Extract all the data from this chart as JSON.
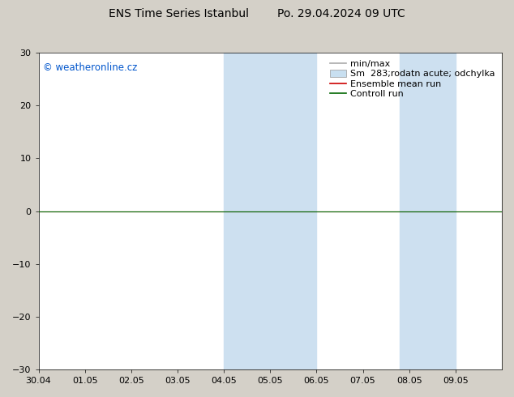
{
  "title": "ENS Time Series Istanbul        Po. 29.04.2024 09 UTC",
  "watermark": "© weatheronline.cz",
  "watermark_color": "#0055cc",
  "ylim": [
    -30,
    30
  ],
  "yticks": [
    -30,
    -20,
    -10,
    0,
    10,
    20,
    30
  ],
  "xlim_start": 0,
  "xlim_end": 10,
  "xtick_labels": [
    "30.04",
    "01.05",
    "02.05",
    "03.05",
    "04.05",
    "05.05",
    "06.05",
    "07.05",
    "08.05",
    "09.05"
  ],
  "xtick_positions": [
    0,
    1,
    2,
    3,
    4,
    5,
    6,
    7,
    8,
    9
  ],
  "bg_color": "#d4d0c8",
  "plot_bg_color": "#ffffff",
  "shaded_regions": [
    {
      "xmin": 4.0,
      "xmax": 4.5,
      "color": "#cde0f0"
    },
    {
      "xmin": 4.5,
      "xmax": 6.0,
      "color": "#cde0f0"
    },
    {
      "xmin": 7.8,
      "xmax": 8.3,
      "color": "#cde0f0"
    },
    {
      "xmin": 8.3,
      "xmax": 9.0,
      "color": "#cde0f0"
    }
  ],
  "hline_color": "#000000",
  "ensemble_mean_color": "#cc0000",
  "control_run_color": "#006600",
  "legend_labels": [
    "min/max",
    "Sm  283;rodatn acute; odchylka",
    "Ensemble mean run",
    "Controll run"
  ],
  "legend_line_colors": [
    "#aaaaaa",
    "#c8dff0",
    "#cc0000",
    "#006600"
  ],
  "title_fontsize": 10,
  "tick_fontsize": 8,
  "legend_fontsize": 8,
  "font_family": "DejaVu Sans"
}
